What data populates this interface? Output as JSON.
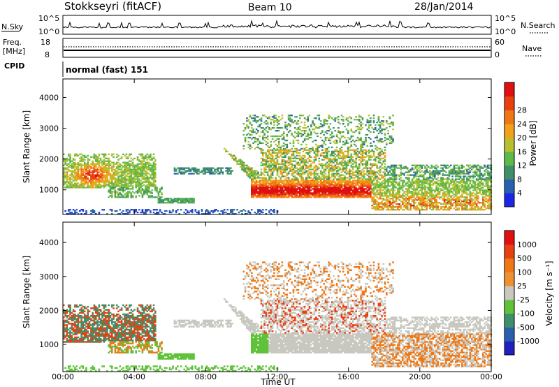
{
  "header": {
    "station": "Stokkseyri (fitACF)",
    "beam": "Beam 10",
    "date": "28/Jan/2014"
  },
  "top_panels": {
    "nsky_label": "N.Sky",
    "nsky_ticks": [
      "10^5",
      "10^0"
    ],
    "nsearch_label": "N.Search",
    "freq_label_line1": "Freq.",
    "freq_label_line2": "[MHz]",
    "freq_ticks": [
      "18",
      "8"
    ],
    "nave_ticks": [
      "60",
      "0"
    ],
    "nave_label": "Nave",
    "cpid_label": "CPID",
    "cpid_text": "normal (fast) 151"
  },
  "chart_data": [
    {
      "type": "heatmap",
      "name": "power",
      "ylabel": "Slant Range [km]",
      "xlabel": "",
      "y_ticks": [
        "1000",
        "2000",
        "3000",
        "4000"
      ],
      "ylim": [
        200,
        4600
      ],
      "colorbar": {
        "label": "Power [dB]",
        "ticks": [
          "4",
          "8",
          "12",
          "16",
          "20",
          "24",
          "28"
        ],
        "colors": [
          "#1a26e6",
          "#2a5fb0",
          "#3f8f6a",
          "#5fb84a",
          "#b8c030",
          "#f2a11a",
          "#f07814",
          "#ea4010",
          "#e01010"
        ],
        "range": [
          0,
          30
        ]
      }
    },
    {
      "type": "heatmap",
      "name": "velocity",
      "ylabel": "Slant Range [km]",
      "xlabel": "Time UT",
      "y_ticks": [
        "1000",
        "2000",
        "3000",
        "4000"
      ],
      "ylim": [
        200,
        4600
      ],
      "x_ticks": [
        "00:00",
        "04:00",
        "08:00",
        "12:00",
        "16:00",
        "20:00",
        "00:00"
      ],
      "colorbar": {
        "label": "Velocity [m s⁻¹]",
        "ticks": [
          "1000",
          "500",
          "100",
          "25",
          "-25",
          "-100",
          "-500",
          "-1000"
        ],
        "colors": [
          "#2020c0",
          "#2a5fb0",
          "#3f8f6a",
          "#5fc23a",
          "#c8c8c0",
          "#f09030",
          "#f07814",
          "#e84010",
          "#e01010"
        ]
      }
    }
  ]
}
